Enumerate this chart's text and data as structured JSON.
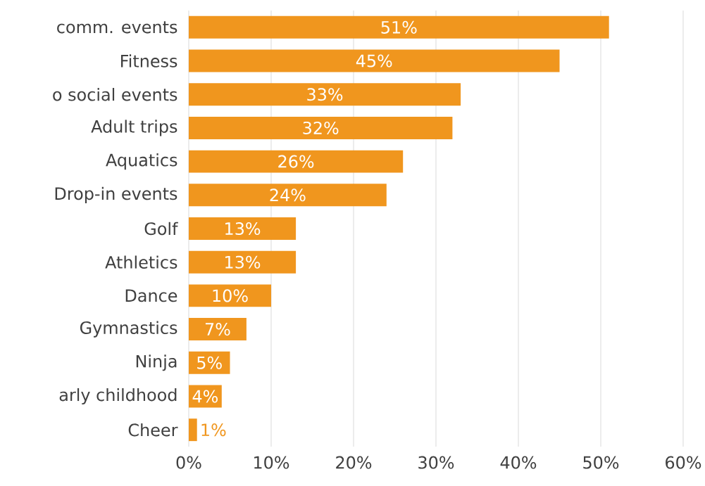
{
  "chart_data": {
    "type": "bar",
    "orientation": "horizontal",
    "categories": [
      "comm. events",
      "Fitness",
      "o social events",
      "Adult trips",
      "Aquatics",
      "Drop-in events",
      "Golf",
      "Athletics",
      "Dance",
      "Gymnastics",
      "Ninja",
      "arly childhood",
      "Cheer"
    ],
    "values": [
      51,
      45,
      33,
      32,
      26,
      24,
      13,
      13,
      10,
      7,
      5,
      4,
      1
    ],
    "value_labels": [
      "51%",
      "45%",
      "33%",
      "32%",
      "26%",
      "24%",
      "13%",
      "13%",
      "10%",
      "7%",
      "5%",
      "4%",
      "1%"
    ],
    "color": "#f0961e",
    "xlim": [
      0,
      60
    ],
    "xticks": [
      {
        "value": 0,
        "label": "0%"
      },
      {
        "value": 10,
        "label": "10%"
      },
      {
        "value": 20,
        "label": "20%"
      },
      {
        "value": 30,
        "label": "30%"
      },
      {
        "value": 40,
        "label": "40%"
      },
      {
        "value": 50,
        "label": "50%"
      },
      {
        "value": 60,
        "label": "60%"
      }
    ],
    "grid": "x"
  }
}
